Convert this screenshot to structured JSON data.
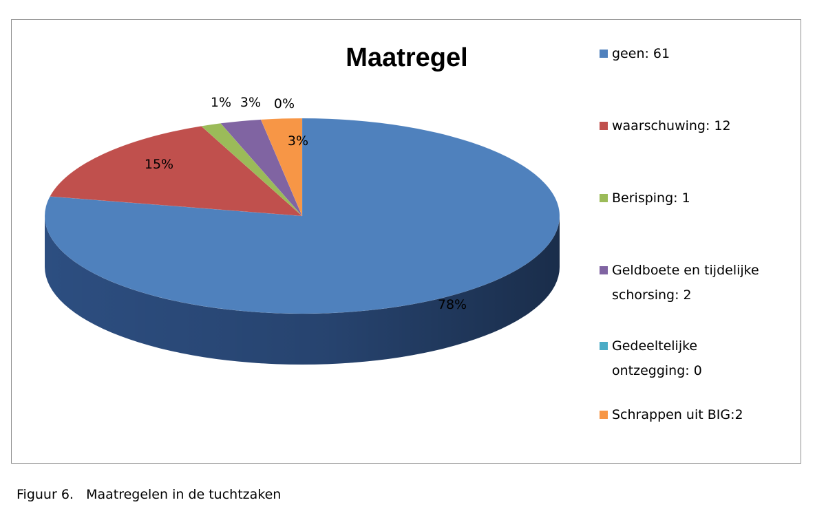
{
  "caption": "Figuur 6.   Maatregelen in de tuchtzaken",
  "chart_data": {
    "type": "pie",
    "title": "Maatregel",
    "legend_position": "right",
    "slices": [
      {
        "label": "geen",
        "value": 61,
        "percent_label": "78%",
        "legend": "geen: 61",
        "color": "#4f81bd",
        "side": "#2f5287"
      },
      {
        "label": "waarschuwing",
        "value": 12,
        "percent_label": "15%",
        "legend": "waarschuwing: 12",
        "color": "#c0504d",
        "side": "#8a3331"
      },
      {
        "label": "Berisping",
        "value": 1,
        "percent_label": "1%",
        "legend": "Berisping: 1",
        "color": "#9bbb59",
        "side": "#6b8a35"
      },
      {
        "label": "Geldboete en tijdelijke schorsing",
        "value": 2,
        "percent_label": "3%",
        "legend": [
          "Geldboete en tijdelijke",
          "schorsing: 2"
        ],
        "color": "#8064a2",
        "side": "#56406f"
      },
      {
        "label": "Gedeeltelijke ontzegging",
        "value": 0,
        "percent_label": "0%",
        "legend": [
          "Gedeeltelijke",
          "ontzegging: 0"
        ],
        "color": "#4bacc6",
        "side": "#2d7b8f"
      },
      {
        "label": "Schrappen uit BIG",
        "value": 2,
        "percent_label": "3%",
        "legend": "Schrappen uit BIG:2",
        "color": "#f79646",
        "side": "#b86521"
      }
    ]
  }
}
